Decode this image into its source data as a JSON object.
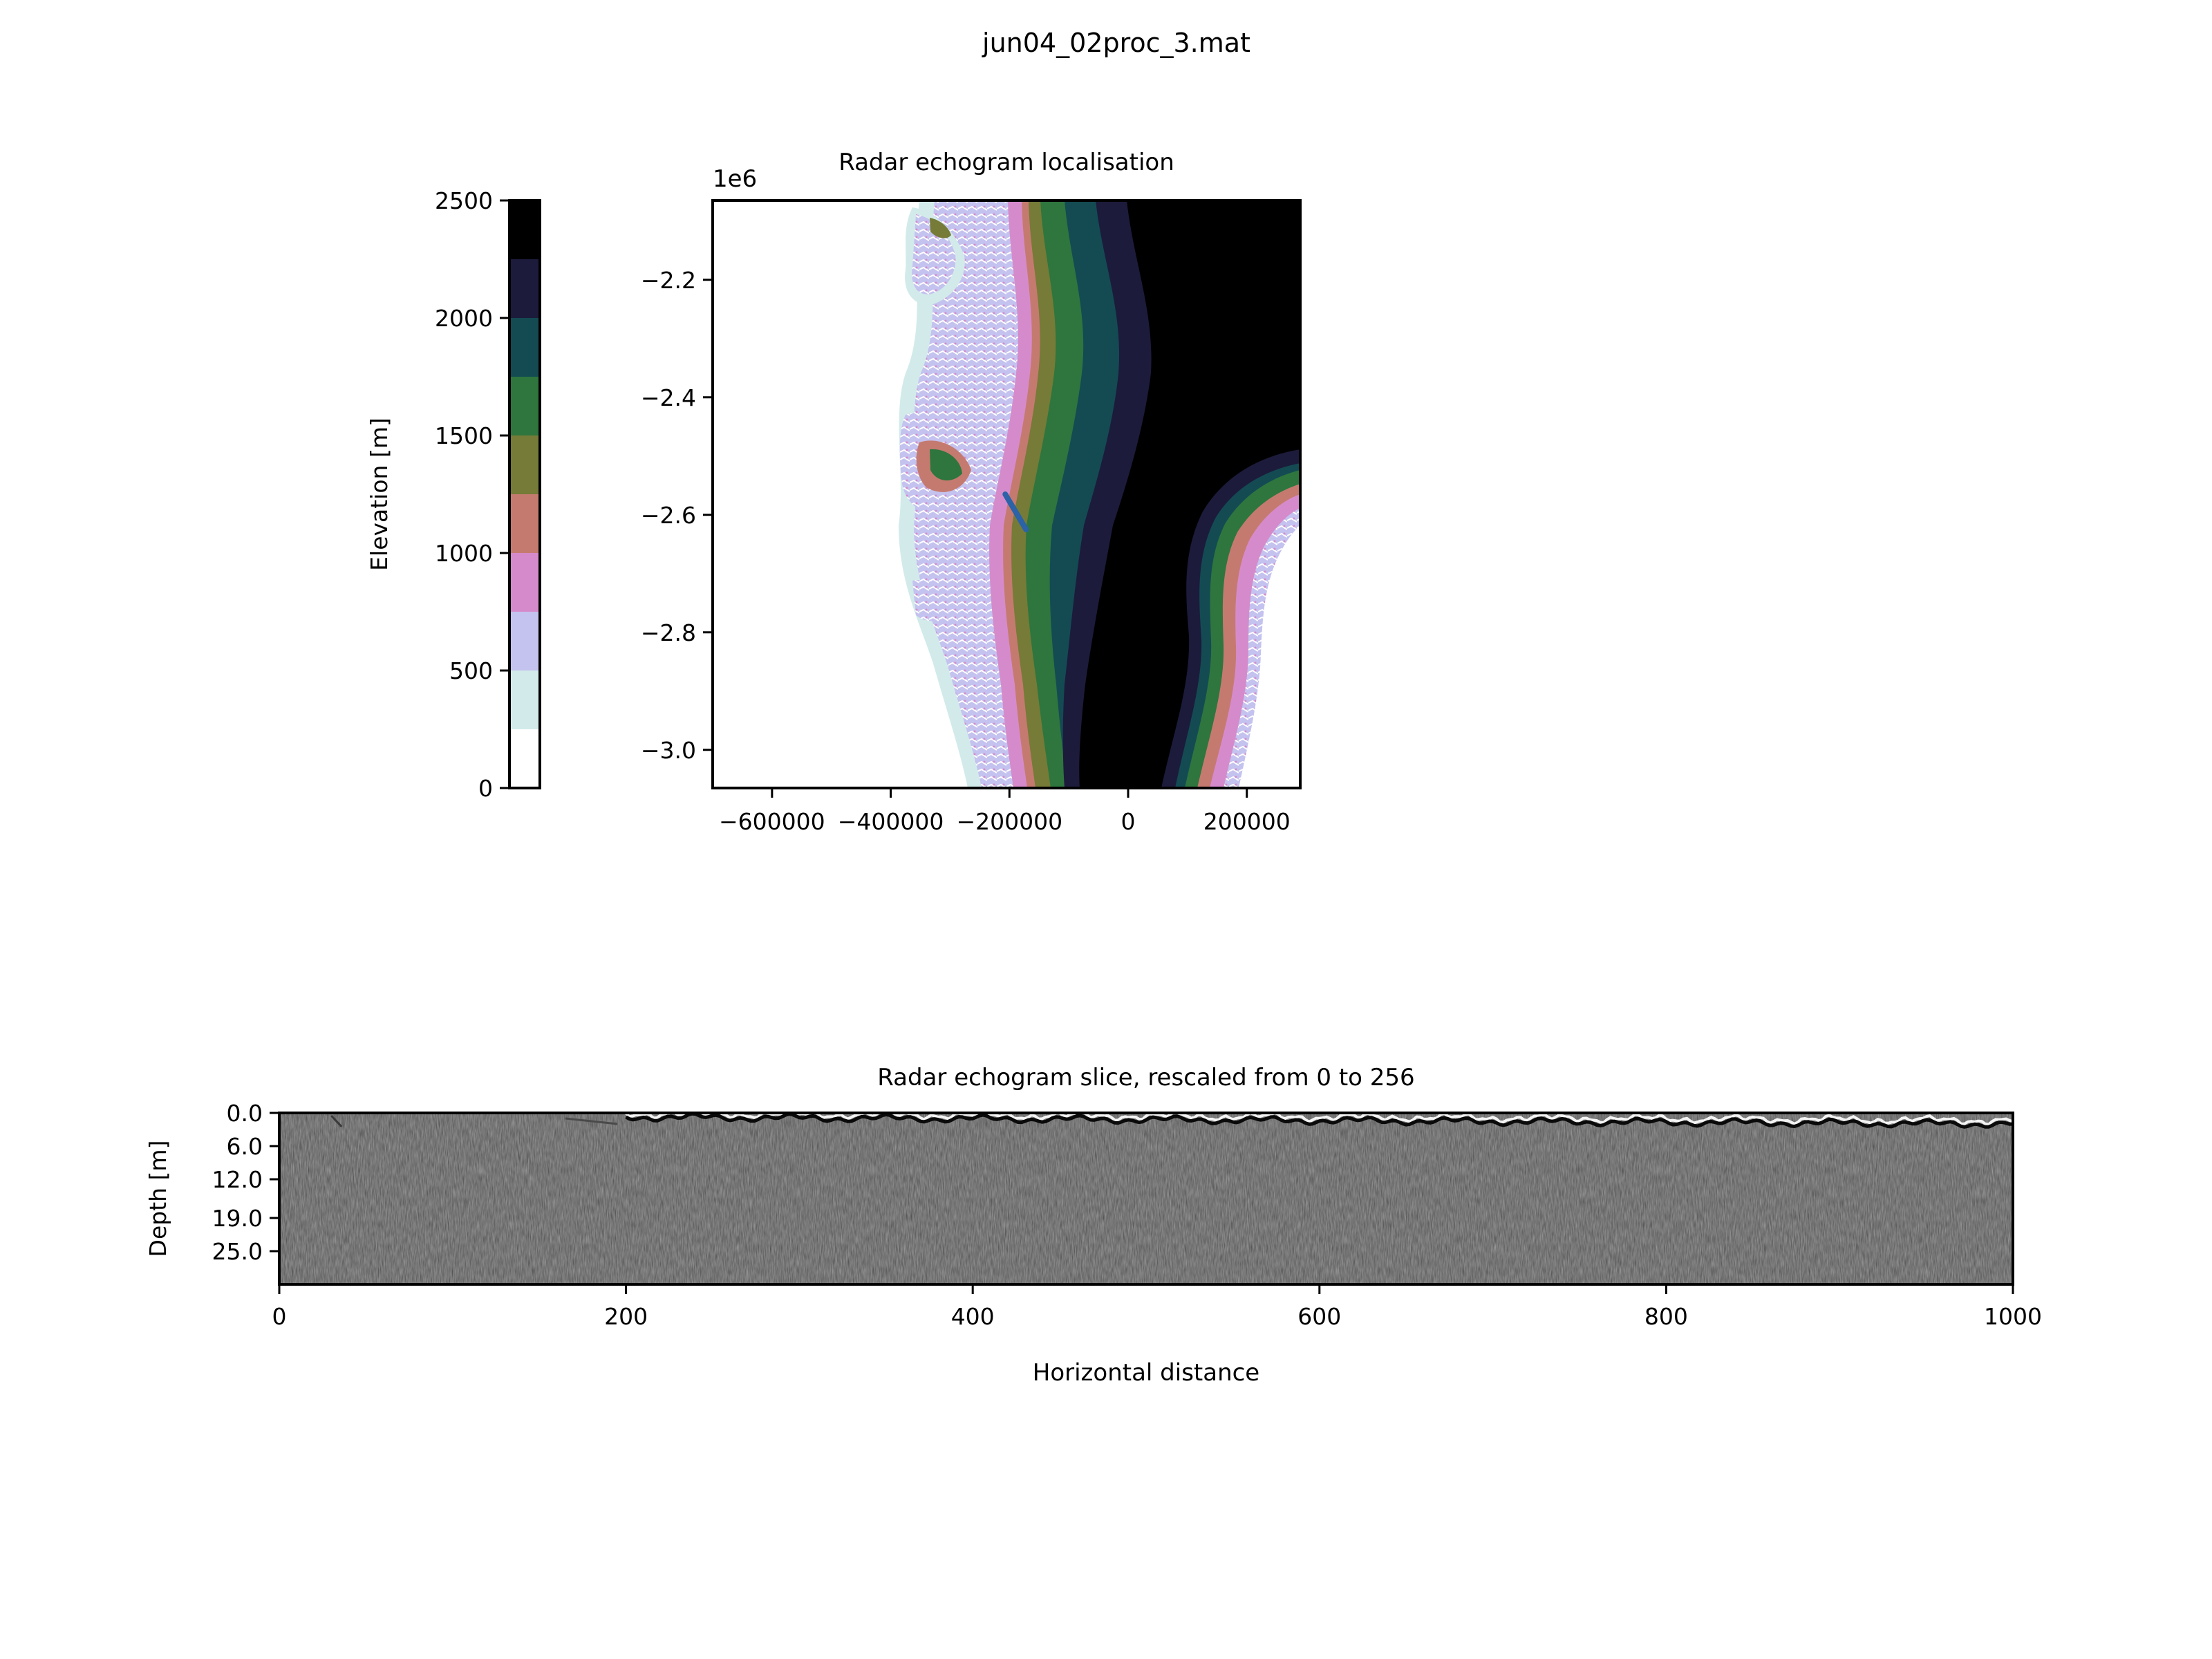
{
  "figure": {
    "title": "jun04_02proc_3.mat"
  },
  "chart_data": [
    {
      "type": "heatmap",
      "name": "colorbar",
      "ylabel": "Elevation [m]",
      "ylim": [
        0,
        2500
      ],
      "ticks": [
        0,
        500,
        1000,
        1500,
        2000,
        2500
      ],
      "tick_labels": [
        "0",
        "500",
        "1000",
        "1500",
        "2000",
        "2500"
      ],
      "bins": [
        0,
        250,
        500,
        750,
        1000,
        1250,
        1500,
        1750,
        2000,
        2250,
        2500
      ],
      "colors": [
        "#ffffff",
        "#d2ebea",
        "#c4c2ef",
        "#d58bcb",
        "#c57a70",
        "#767b37",
        "#2e763e",
        "#144b53",
        "#1c1b3b",
        "#000000"
      ]
    },
    {
      "type": "heatmap",
      "name": "map",
      "title": "Radar echogram localisation",
      "offset_label": "1e6",
      "xlim": [
        -700000,
        290000
      ],
      "ylim": [
        -3.065,
        -2.065
      ],
      "x_ticks": [
        -600000,
        -400000,
        -200000,
        0,
        200000
      ],
      "x_tick_labels": [
        "−600000",
        "−400000",
        "−200000",
        "0",
        "200000"
      ],
      "y_ticks": [
        -2.2,
        -2.4,
        -2.6,
        -2.8,
        -3.0
      ],
      "y_tick_labels": [
        "−2.2",
        "−2.4",
        "−2.6",
        "−2.8",
        "−3.0"
      ],
      "track": {
        "x": [
          -207000,
          -172000
        ],
        "y": [
          -2.565,
          -2.625
        ],
        "color": "#2b62a8"
      }
    },
    {
      "type": "heatmap",
      "name": "echogram",
      "title": "Radar echogram slice, rescaled from 0 to 256",
      "xlabel": "Horizontal distance",
      "ylabel": "Depth [m]",
      "xlim": [
        0,
        1000
      ],
      "ylim": [
        0,
        31
      ],
      "x_ticks": [
        0,
        200,
        400,
        600,
        800,
        1000
      ],
      "x_tick_labels": [
        "0",
        "200",
        "400",
        "600",
        "800",
        "1000"
      ],
      "y_ticks": [
        0,
        6,
        12,
        19,
        25
      ],
      "y_tick_labels": [
        "0.0",
        "6.0",
        "12.0",
        "19.0",
        "25.0"
      ],
      "surface_start": 200
    }
  ]
}
